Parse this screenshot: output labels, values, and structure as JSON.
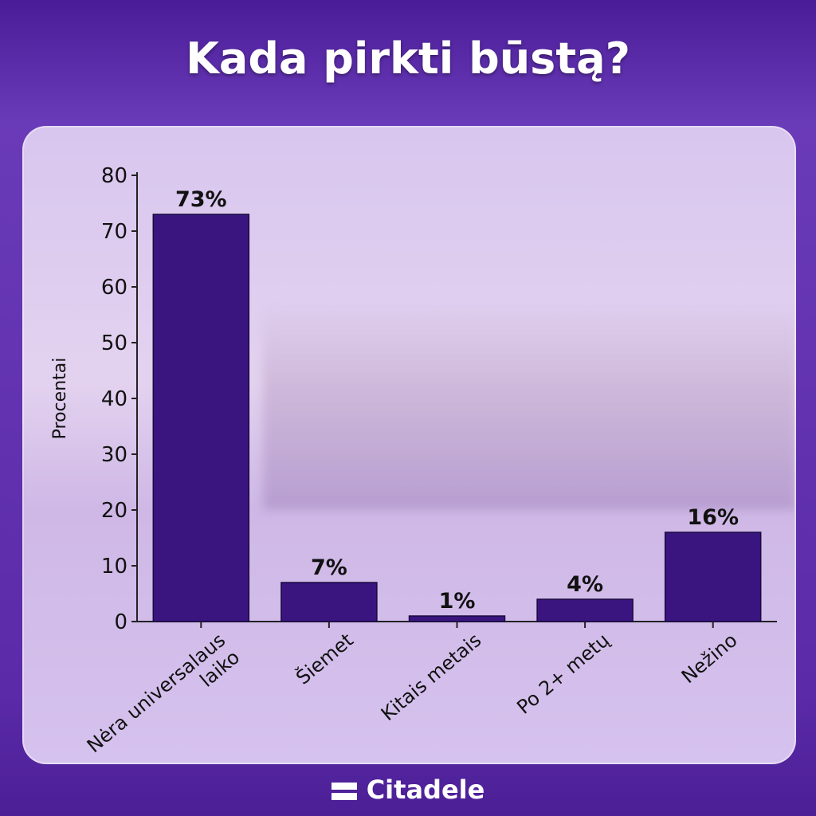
{
  "title": "Kada pirkti būstą?",
  "brand": "Citadele",
  "chart_data": {
    "type": "bar",
    "title": "Kada pirkti būstą?",
    "ylabel": "Procentai",
    "xlabel": "",
    "ylim": [
      0,
      80
    ],
    "yticks": [
      0,
      10,
      20,
      30,
      40,
      50,
      60,
      70,
      80
    ],
    "categories": [
      "Nėra universalaus laiko",
      "Šiemet",
      "Kitais metais",
      "Po 2+ metų",
      "Nežino"
    ],
    "values": [
      73,
      7,
      1,
      4,
      16
    ],
    "data_labels": [
      "73%",
      "7%",
      "1%",
      "4%",
      "16%"
    ],
    "bar_color": "#3a1580",
    "grid": false
  }
}
